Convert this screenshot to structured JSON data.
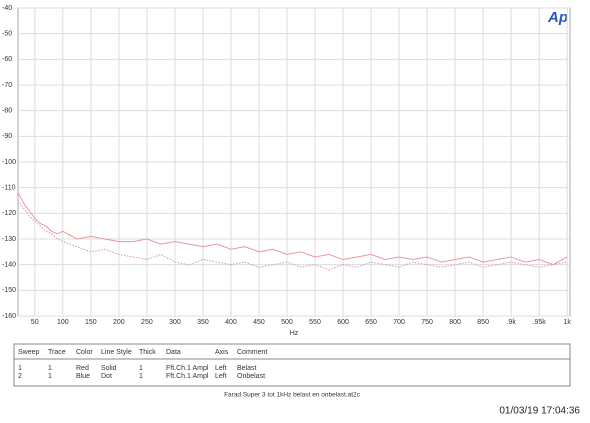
{
  "chart_data": {
    "type": "line",
    "x_label": "Hz",
    "x": [
      20,
      30,
      40,
      50,
      60,
      70,
      80,
      90,
      100,
      125,
      150,
      175,
      200,
      225,
      250,
      275,
      300,
      325,
      350,
      375,
      400,
      425,
      450,
      475,
      500,
      525,
      550,
      575,
      600,
      625,
      650,
      675,
      700,
      725,
      750,
      775,
      800,
      825,
      850,
      875,
      900,
      925,
      950,
      975,
      1000
    ],
    "series": [
      {
        "name": "Belast",
        "color": "#e89a9a",
        "dash": false,
        "values": [
          -112,
          -116,
          -119,
          -122,
          -124,
          -125,
          -127,
          -128,
          -127,
          -130,
          -129,
          -130,
          -131,
          -131,
          -130,
          -132,
          -131,
          -132,
          -133,
          -132,
          -134,
          -133,
          -135,
          -134,
          -136,
          -135,
          -137,
          -136,
          -138,
          -137,
          -136,
          -138,
          -137,
          -138,
          -137,
          -139,
          -138,
          -137,
          -139,
          -138,
          -137,
          -139,
          -138,
          -140,
          -137
        ]
      },
      {
        "name": "Onbelast",
        "color": "#c99ab8",
        "dash": true,
        "values": [
          -115,
          -118,
          -121,
          -123,
          -125,
          -127,
          -128,
          -130,
          -131,
          -133,
          -135,
          -134,
          -136,
          -137,
          -138,
          -136,
          -139,
          -140,
          -138,
          -139,
          -140,
          -139,
          -141,
          -140,
          -139,
          -141,
          -140,
          -142,
          -140,
          -141,
          -139,
          -140,
          -141,
          -139,
          -140,
          -141,
          -140,
          -139,
          -141,
          -140,
          -139,
          -140,
          -141,
          -140,
          -139
        ]
      }
    ],
    "xlim": [
      20,
      1005
    ],
    "xticks": [
      50,
      100,
      150,
      200,
      250,
      300,
      350,
      400,
      450,
      500,
      550,
      600,
      650,
      700,
      750,
      800,
      850,
      {
        "value": 900,
        "label": ".9k"
      },
      {
        "value": 950,
        "label": ".95k"
      },
      {
        "value": 1000,
        "label": "1k"
      }
    ],
    "ylim": [
      -160,
      -40
    ],
    "yticks": [
      -160,
      -150,
      -140,
      -130,
      -120,
      -110,
      -100,
      -90,
      -80,
      -70,
      -60,
      -50,
      -40
    ],
    "grid": true
  },
  "logo": "Ap",
  "legend_table": {
    "headers": [
      "Sweep",
      "Trace",
      "Color",
      "Line Style",
      "Thick",
      "Data",
      "Axis",
      "Comment"
    ],
    "rows": [
      [
        "1",
        "1",
        "Red",
        "Solid",
        "1",
        "Fft.Ch.1 Ampl",
        "Left"
      ],
      [
        "2",
        "1",
        "Blue",
        "Dot",
        "1",
        "Fft.Ch.1 Ampl",
        "Left"
      ]
    ]
  },
  "footer": {
    "file": "Farad Super 3 tot 1kHz belast en onbelast.at2c",
    "timestamp": "01/03/19 17:04:36"
  }
}
